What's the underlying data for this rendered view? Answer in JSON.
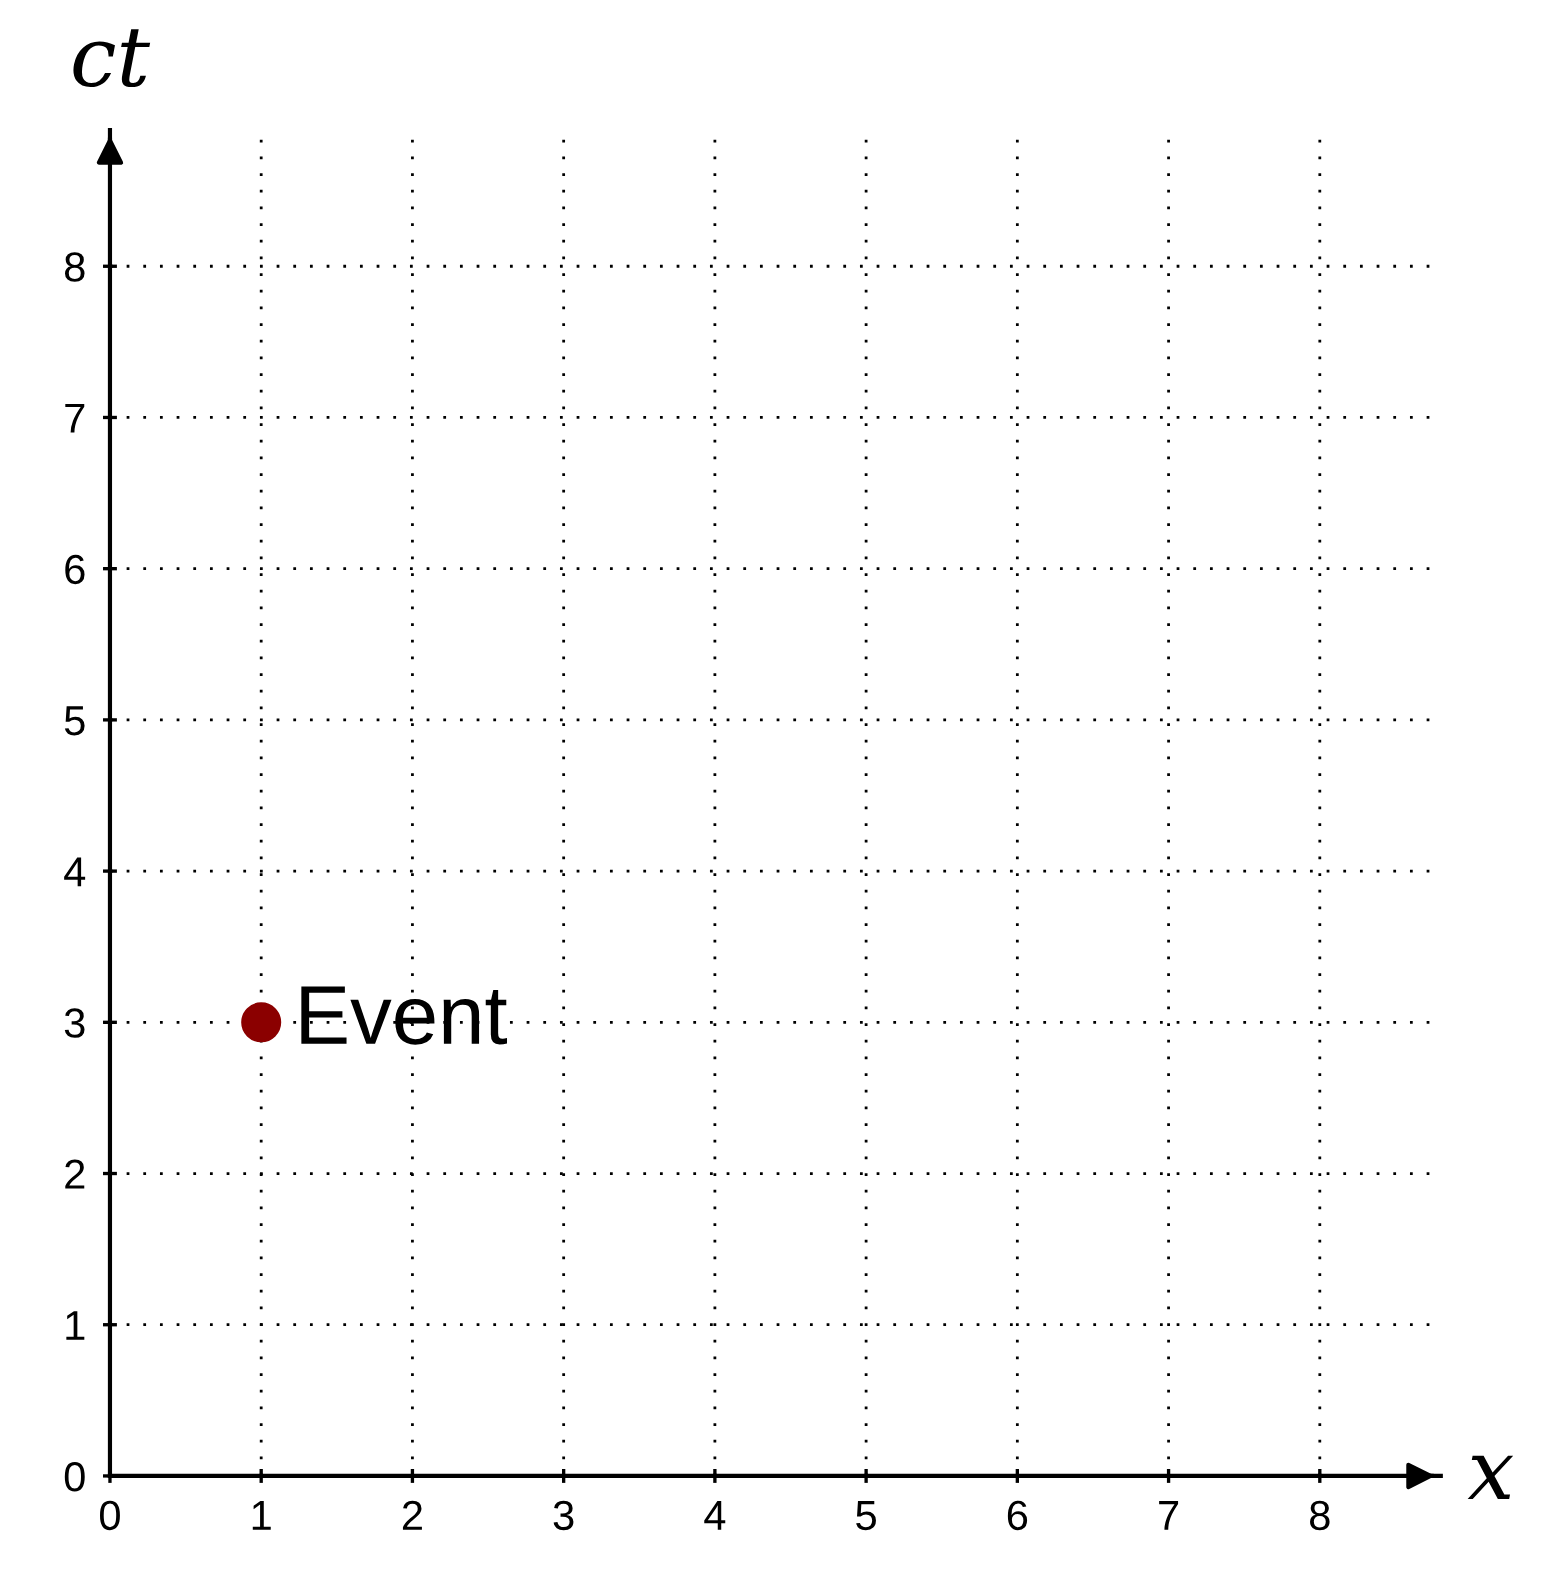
{
  "chart_data": {
    "type": "scatter",
    "xlabel": "x",
    "ylabel": "ct",
    "x": [
      1
    ],
    "values": [
      3
    ],
    "color": "#8b0000",
    "marker": "circle",
    "annotations": [
      {
        "text": "Event",
        "x": 1,
        "y": 3
      }
    ],
    "xlim": [
      0,
      8.8
    ],
    "ylim": [
      0,
      8.9
    ],
    "xticks": [
      0,
      1,
      2,
      3,
      4,
      5,
      6,
      7,
      8
    ],
    "yticks": [
      0,
      1,
      2,
      3,
      4,
      5,
      6,
      7,
      8
    ],
    "grid": true
  }
}
